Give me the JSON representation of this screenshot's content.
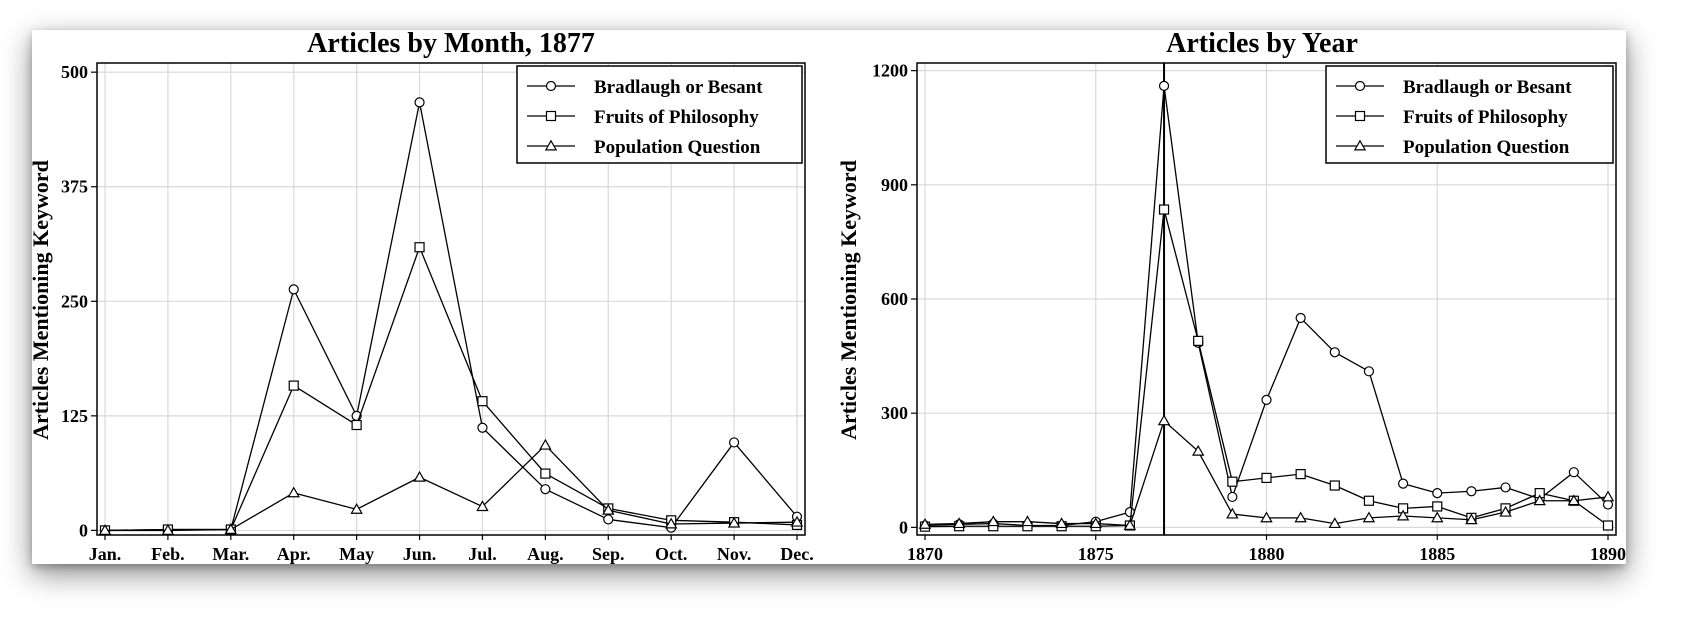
{
  "colors": {
    "line": "#000000",
    "grid": "#d9d9d9",
    "background": "#ffffff"
  },
  "chart_data": [
    {
      "type": "line",
      "title": "Articles by Month, 1877",
      "xlabel": "",
      "ylabel": "Articles Mentioning Keyword",
      "categories": [
        "Jan.",
        "Feb.",
        "Mar.",
        "Apr.",
        "May",
        "Jun.",
        "Jul.",
        "Aug.",
        "Sep.",
        "Oct.",
        "Nov.",
        "Dec."
      ],
      "ylim": [
        -5,
        510
      ],
      "yticks": [
        0,
        125,
        250,
        375,
        500
      ],
      "grid": true,
      "legend_position": "top-right",
      "series": [
        {
          "name": "Bradlaugh or Besant",
          "marker": "circle",
          "values": [
            0,
            1,
            1,
            263,
            125,
            467,
            112,
            45,
            12,
            3,
            96,
            15
          ]
        },
        {
          "name": "Fruits of Philosophy",
          "marker": "square",
          "values": [
            0,
            1,
            1,
            158,
            115,
            309,
            141,
            62,
            24,
            11,
            9,
            6
          ]
        },
        {
          "name": "Population Question",
          "marker": "triangle",
          "values": [
            0,
            0,
            1,
            41,
            23,
            58,
            26,
            93,
            22,
            7,
            8,
            9
          ]
        }
      ]
    },
    {
      "type": "line",
      "title": "Articles by Year",
      "xlabel": "",
      "ylabel": "Articles Mentioning Keyword",
      "x": [
        1870,
        1871,
        1872,
        1873,
        1874,
        1875,
        1876,
        1877,
        1878,
        1879,
        1880,
        1881,
        1882,
        1883,
        1884,
        1885,
        1886,
        1887,
        1888,
        1889,
        1890
      ],
      "xlim": [
        1870,
        1890
      ],
      "xticks": [
        1870,
        1875,
        1880,
        1885,
        1890
      ],
      "ylim": [
        -20,
        1220
      ],
      "yticks": [
        0,
        300,
        600,
        900,
        1200
      ],
      "grid": true,
      "legend_position": "top-right",
      "vline_x": 1877,
      "series": [
        {
          "name": "Bradlaugh or Besant",
          "marker": "circle",
          "values": [
            5,
            8,
            10,
            5,
            5,
            15,
            40,
            1160,
            485,
            80,
            335,
            550,
            460,
            410,
            115,
            90,
            95,
            105,
            75,
            145,
            60
          ]
        },
        {
          "name": "Fruits of Philosophy",
          "marker": "square",
          "values": [
            2,
            3,
            3,
            3,
            3,
            3,
            5,
            835,
            490,
            120,
            130,
            140,
            110,
            70,
            50,
            55,
            25,
            50,
            90,
            70,
            5
          ]
        },
        {
          "name": "Population Question",
          "marker": "triangle",
          "values": [
            8,
            10,
            15,
            15,
            10,
            10,
            5,
            280,
            200,
            35,
            25,
            25,
            10,
            25,
            30,
            25,
            20,
            40,
            70,
            70,
            80
          ]
        }
      ]
    }
  ]
}
